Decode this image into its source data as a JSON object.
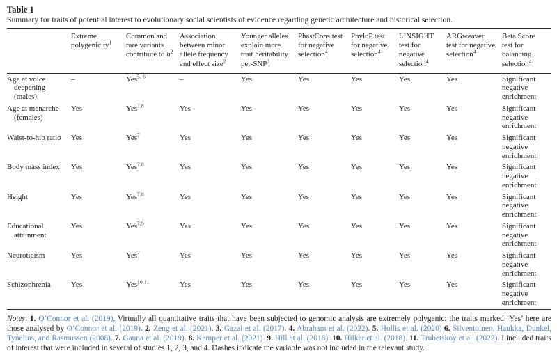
{
  "page": {
    "background": "#ffffff",
    "text_color": "#1c1c1c",
    "link_color": "#5585bb"
  },
  "table": {
    "label": "Table 1",
    "caption": "Summary for traits of potential interest to evolutionary social scientists of evidence regarding genetic architecture and historical selection.",
    "header": {
      "trait_column_label": "",
      "columns": [
        {
          "id": "extreme-polygenicity",
          "segments": [
            {
              "t": "Extreme polygenicity"
            },
            {
              "t": "1",
              "style": "sup"
            }
          ]
        },
        {
          "id": "common-rare-variants",
          "segments": [
            {
              "t": "Common and rare variants contribute to "
            },
            {
              "t": "h",
              "style": "italic"
            },
            {
              "t": "2",
              "style": "sup"
            }
          ]
        },
        {
          "id": "maf-effect-size",
          "segments": [
            {
              "t": "Association between minor allele frequency and effect size"
            },
            {
              "t": "2",
              "style": "sup"
            }
          ]
        },
        {
          "id": "younger-alleles",
          "segments": [
            {
              "t": "Younger alleles explain more trait heritability per-SNP"
            },
            {
              "t": "3",
              "style": "sup"
            }
          ]
        },
        {
          "id": "phastcons",
          "segments": [
            {
              "t": "PhastCons test for negative selection"
            },
            {
              "t": "4",
              "style": "sup"
            }
          ]
        },
        {
          "id": "phylop",
          "segments": [
            {
              "t": "PhyloP test for negative selection"
            },
            {
              "t": "4",
              "style": "sup"
            }
          ]
        },
        {
          "id": "linsight",
          "segments": [
            {
              "t": "LINSIGHT test for negative selection"
            },
            {
              "t": "4",
              "style": "sup"
            }
          ]
        },
        {
          "id": "argweaver",
          "segments": [
            {
              "t": "ARGweaver test for negative selection"
            },
            {
              "t": "4",
              "style": "sup"
            }
          ]
        },
        {
          "id": "beta-score",
          "segments": [
            {
              "t": "Beta Score test for balancing selection"
            },
            {
              "t": "4",
              "style": "sup"
            }
          ]
        }
      ]
    },
    "rows": [
      {
        "trait": "Age at voice deepening (males)",
        "cells": [
          {
            "t": "–"
          },
          {
            "t": "Yes",
            "sup": "5, 6"
          },
          {
            "t": "–"
          },
          {
            "t": "Yes"
          },
          {
            "t": "Yes"
          },
          {
            "t": "Yes"
          },
          {
            "t": "Yes"
          },
          {
            "t": "Yes"
          },
          {
            "t": "Significant negative enrichment"
          }
        ]
      },
      {
        "trait": "Age at menarche (females)",
        "cells": [
          {
            "t": "Yes"
          },
          {
            "t": "Yes",
            "sup": "7,8"
          },
          {
            "t": "Yes"
          },
          {
            "t": "Yes"
          },
          {
            "t": "Yes"
          },
          {
            "t": "Yes"
          },
          {
            "t": "Yes"
          },
          {
            "t": "Yes"
          },
          {
            "t": "Significant negative enrichment"
          }
        ]
      },
      {
        "trait": "Waist-to-hip ratio",
        "cells": [
          {
            "t": "Yes"
          },
          {
            "t": "Yes",
            "sup": "7"
          },
          {
            "t": "Yes"
          },
          {
            "t": "Yes"
          },
          {
            "t": "Yes"
          },
          {
            "t": "Yes"
          },
          {
            "t": "Yes"
          },
          {
            "t": "Yes"
          },
          {
            "t": "Significant negative enrichment"
          }
        ]
      },
      {
        "trait": "Body mass index",
        "cells": [
          {
            "t": "Yes"
          },
          {
            "t": "Yes",
            "sup": "7,8"
          },
          {
            "t": "Yes"
          },
          {
            "t": "Yes"
          },
          {
            "t": "Yes"
          },
          {
            "t": "Yes"
          },
          {
            "t": "Yes"
          },
          {
            "t": "Yes"
          },
          {
            "t": "Significant negative enrichment"
          }
        ]
      },
      {
        "trait": "Height",
        "cells": [
          {
            "t": "Yes"
          },
          {
            "t": "Yes",
            "sup": "7,8"
          },
          {
            "t": "Yes"
          },
          {
            "t": "Yes"
          },
          {
            "t": "Yes"
          },
          {
            "t": "Yes"
          },
          {
            "t": "Yes"
          },
          {
            "t": "Yes"
          },
          {
            "t": "Significant negative enrichment"
          }
        ]
      },
      {
        "trait": "Educational attainment",
        "cells": [
          {
            "t": "Yes"
          },
          {
            "t": "Yes",
            "sup": "7,9"
          },
          {
            "t": "Yes"
          },
          {
            "t": "Yes"
          },
          {
            "t": "Yes"
          },
          {
            "t": "Yes"
          },
          {
            "t": "Yes"
          },
          {
            "t": "Yes"
          },
          {
            "t": "Significant negative enrichment"
          }
        ]
      },
      {
        "trait": "Neuroticism",
        "cells": [
          {
            "t": "Yes"
          },
          {
            "t": "Yes",
            "sup": "7"
          },
          {
            "t": "Yes"
          },
          {
            "t": "Yes"
          },
          {
            "t": "Yes"
          },
          {
            "t": "Yes"
          },
          {
            "t": "Yes"
          },
          {
            "t": "Yes"
          },
          {
            "t": "Significant negative enrichment"
          }
        ]
      },
      {
        "trait": "Schizophrenia",
        "cells": [
          {
            "t": "Yes"
          },
          {
            "t": "Yes",
            "sup": "10,11"
          },
          {
            "t": "Yes"
          },
          {
            "t": "Yes"
          },
          {
            "t": "Yes"
          },
          {
            "t": "Yes"
          },
          {
            "t": "Yes"
          },
          {
            "t": "Yes"
          },
          {
            "t": "Significant negative enrichment"
          }
        ]
      }
    ]
  },
  "notes": {
    "segments": [
      {
        "t": "Notes",
        "style": "italic"
      },
      {
        "t": ": "
      },
      {
        "t": "1.",
        "style": "bold"
      },
      {
        "t": " "
      },
      {
        "t": "O’Connor et al. (2019)",
        "style": "link"
      },
      {
        "t": ". Virtually all quantitative traits that have been subjected to genomic analysis are extremely polygenic; the traits marked ‘Yes’ here are those analysed by "
      },
      {
        "t": "O’Connor et al. (2019)",
        "style": "link"
      },
      {
        "t": ". "
      },
      {
        "t": "2.",
        "style": "bold"
      },
      {
        "t": " "
      },
      {
        "t": "Zeng et al. (2021)",
        "style": "link"
      },
      {
        "t": ". "
      },
      {
        "t": "3.",
        "style": "bold"
      },
      {
        "t": " "
      },
      {
        "t": "Gazal et al. (2017)",
        "style": "link"
      },
      {
        "t": ". "
      },
      {
        "t": "4.",
        "style": "bold"
      },
      {
        "t": " "
      },
      {
        "t": "Abraham et al. (2022)",
        "style": "link"
      },
      {
        "t": ". "
      },
      {
        "t": "5.",
        "style": "bold"
      },
      {
        "t": " "
      },
      {
        "t": "Hollis et al. (2020)",
        "style": "link"
      },
      {
        "t": " "
      },
      {
        "t": "6.",
        "style": "bold"
      },
      {
        "t": " "
      },
      {
        "t": "Silventoinen, Haukka, Dunkel, Tynelius, and Rasmussen (2008)",
        "style": "link"
      },
      {
        "t": ". "
      },
      {
        "t": "7.",
        "style": "bold"
      },
      {
        "t": " "
      },
      {
        "t": "Ganna et al. (2019)",
        "style": "link"
      },
      {
        "t": ". "
      },
      {
        "t": "8.",
        "style": "bold"
      },
      {
        "t": " "
      },
      {
        "t": "Kemper et al. (2021)",
        "style": "link"
      },
      {
        "t": ". "
      },
      {
        "t": "9.",
        "style": "bold"
      },
      {
        "t": " "
      },
      {
        "t": "Hill et al. (2018)",
        "style": "link"
      },
      {
        "t": ". "
      },
      {
        "t": "10.",
        "style": "bold"
      },
      {
        "t": " "
      },
      {
        "t": "Hilker et al. (2018)",
        "style": "link"
      },
      {
        "t": ". "
      },
      {
        "t": "11.",
        "style": "bold"
      },
      {
        "t": " "
      },
      {
        "t": "Trubetskoy et al. (2022)",
        "style": "link"
      },
      {
        "t": ". I included traits of interest that were included in several of studies 1, 2, 3, and 4. Dashes indicate the variable was not included in the relevant study."
      }
    ]
  }
}
